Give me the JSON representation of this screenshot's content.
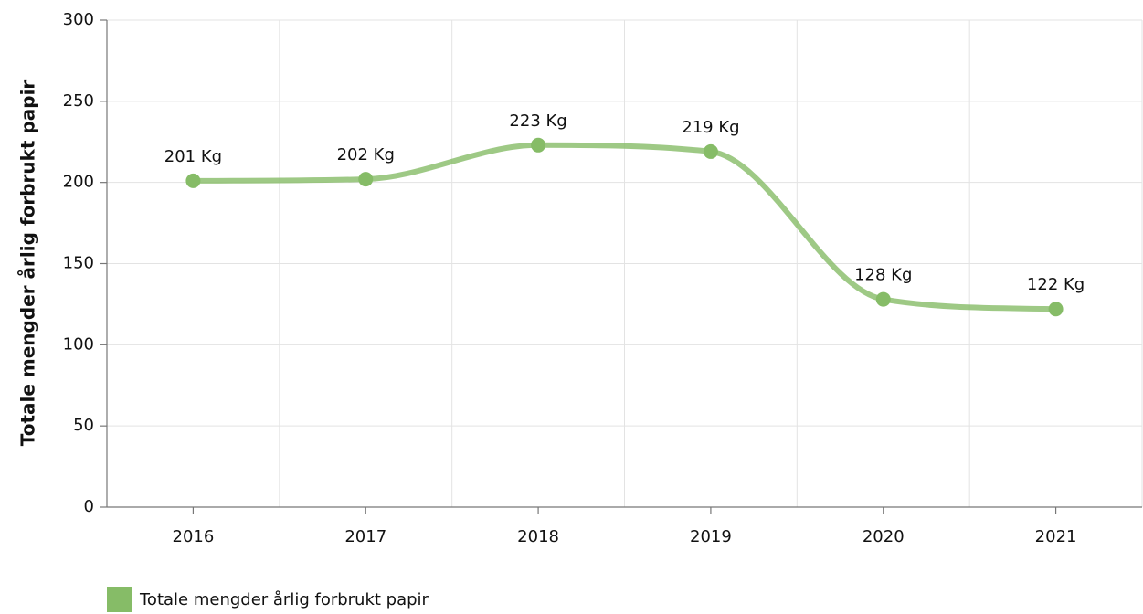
{
  "chart_data": {
    "type": "line",
    "y_label": "Totale mengder årlig forbrukt papir",
    "categories": [
      "2016",
      "2017",
      "2018",
      "2019",
      "2020",
      "2021"
    ],
    "series": [
      {
        "name": "Totale mengder årlig forbrukt papir",
        "color": "#86bc67",
        "values": [
          201,
          202,
          223,
          219,
          128,
          122
        ],
        "value_labels": [
          "201 Kg",
          "202 Kg",
          "223 Kg",
          "219 Kg",
          "128 Kg",
          "122 Kg"
        ]
      }
    ],
    "ylim": [
      0,
      300
    ],
    "yticks": [
      0,
      50,
      100,
      150,
      200,
      250,
      300
    ],
    "grid": true,
    "smooth": true,
    "legend": "bottom-left"
  }
}
